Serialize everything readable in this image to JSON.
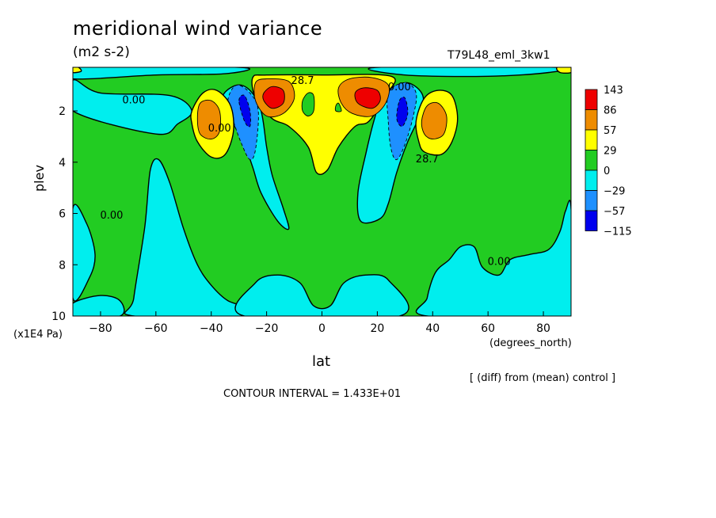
{
  "chart_data": {
    "type": "contour",
    "title": "meridional wind variance",
    "units": "(m2 s-2)",
    "experiment": "T79L48_eml_3kw1",
    "xlabel": "lat",
    "x_units": "(degrees_north)",
    "ylabel": "plev",
    "y_units": "(x1E4 Pa)",
    "xlim": [
      -90,
      90
    ],
    "ylim": [
      10,
      0.3
    ],
    "x_ticks": [
      -80,
      -60,
      -40,
      -20,
      0,
      20,
      40,
      60,
      80
    ],
    "y_ticks": [
      2,
      4,
      6,
      8,
      10
    ],
    "diff_note": "[ (diff) from (mean) control ]",
    "contour_interval": "CONTOUR INTERVAL = 1.433E+01",
    "legend": {
      "labels": [
        "143",
        "86",
        "57",
        "29",
        "0",
        "−29",
        "−57",
        "−115"
      ],
      "colors": [
        "#ee0000",
        "#ee8c00",
        "#ffff00",
        "#22cc22",
        "#00eeee",
        "#1e90ff",
        "#0000ee"
      ]
    },
    "background_color": "#22cc22",
    "regions": [
      {
        "level": "negative",
        "color": "#00eeee",
        "pts": [
          [
            -90,
            0.8
          ],
          [
            -80,
            1.3
          ],
          [
            -55,
            1.4
          ],
          [
            -47,
            2.0
          ],
          [
            -52,
            2.5
          ],
          [
            -60,
            2.9
          ],
          [
            -90,
            2.0
          ]
        ]
      },
      {
        "level": "negative",
        "color": "#00eeee",
        "pts": [
          [
            -90,
            5.8
          ],
          [
            -85,
            6.4
          ],
          [
            -82,
            7.6
          ],
          [
            -84,
            8.5
          ],
          [
            -90,
            9.3
          ]
        ]
      },
      {
        "level": "negative",
        "color": "#00eeee",
        "pts": [
          [
            -90,
            9.5
          ],
          [
            -80,
            9.2
          ],
          [
            -73,
            9.4
          ],
          [
            -73,
            10
          ],
          [
            -90,
            10
          ]
        ]
      },
      {
        "level": "negative",
        "color": "#00eeee",
        "pts": [
          [
            -68,
            9.3
          ],
          [
            -64,
            6.5
          ],
          [
            -62,
            4.3
          ],
          [
            -59,
            3.9
          ],
          [
            -55,
            4.8
          ],
          [
            -50,
            6.6
          ],
          [
            -45,
            8.0
          ],
          [
            -40,
            8.8
          ],
          [
            -34,
            9.4
          ],
          [
            -26,
            9.7
          ],
          [
            -26,
            10
          ],
          [
            -68,
            10
          ]
        ]
      },
      {
        "level": "negative",
        "color": "#00eeee",
        "pts": [
          [
            -36,
            1.5
          ],
          [
            -31,
            1.0
          ],
          [
            -26,
            1.2
          ],
          [
            -22,
            2.0
          ],
          [
            -20,
            3.4
          ],
          [
            -18,
            4.5
          ],
          [
            -14,
            5.8
          ],
          [
            -12,
            6.6
          ],
          [
            -16,
            6.3
          ],
          [
            -22,
            5.2
          ],
          [
            -25,
            4.2
          ],
          [
            -28,
            3.3
          ],
          [
            -32,
            2.5
          ]
        ]
      },
      {
        "level": "negative",
        "color": "#00eeee",
        "pts": [
          [
            22,
            1.4
          ],
          [
            30,
            0.9
          ],
          [
            36,
            1.3
          ],
          [
            36,
            2.0
          ],
          [
            31,
            3.2
          ],
          [
            27,
            4.4
          ],
          [
            24,
            5.6
          ],
          [
            21,
            6.2
          ],
          [
            14,
            6.3
          ],
          [
            13,
            5.2
          ],
          [
            16,
            3.6
          ],
          [
            19,
            2.3
          ]
        ]
      },
      {
        "level": "negative",
        "color": "#00eeee",
        "pts": [
          [
            38,
            9.3
          ],
          [
            41,
            8.3
          ],
          [
            46,
            7.8
          ],
          [
            50,
            7.3
          ],
          [
            55,
            7.3
          ],
          [
            58,
            8.1
          ],
          [
            64,
            8.4
          ],
          [
            68,
            7.8
          ],
          [
            75,
            7.6
          ],
          [
            82,
            7.4
          ],
          [
            86,
            6.7
          ],
          [
            88,
            5.9
          ],
          [
            90,
            5.8
          ],
          [
            90,
            10
          ],
          [
            38,
            10
          ]
        ]
      },
      {
        "level": "negative",
        "color": "#00eeee",
        "pts": [
          [
            -28,
            10
          ],
          [
            -24,
            8.7
          ],
          [
            -16,
            8.4
          ],
          [
            -8,
            8.7
          ],
          [
            -3,
            9.6
          ],
          [
            3,
            9.6
          ],
          [
            8,
            8.7
          ],
          [
            16,
            8.4
          ],
          [
            24,
            8.6
          ],
          [
            28,
            10
          ]
        ]
      },
      {
        "level": "negative",
        "color": "#00eeee",
        "pts": [
          [
            -90,
            0.3
          ],
          [
            -30,
            0.3
          ],
          [
            -35,
            0.55
          ],
          [
            -60,
            0.6
          ],
          [
            -90,
            0.75
          ]
        ]
      },
      {
        "level": "negative",
        "color": "#00eeee",
        "pts": [
          [
            20,
            0.3
          ],
          [
            85,
            0.3
          ],
          [
            82,
            0.5
          ],
          [
            60,
            0.65
          ],
          [
            30,
            0.6
          ]
        ]
      },
      {
        "level": "low",
        "color": "#1e90ff",
        "pts": [
          [
            -34,
            1.6
          ],
          [
            -31,
            1.0
          ],
          [
            -26,
            1.3
          ],
          [
            -23,
            2.0
          ],
          [
            -24,
            3.5
          ],
          [
            -26,
            3.9
          ],
          [
            -29,
            3.3
          ],
          [
            -32,
            2.4
          ]
        ]
      },
      {
        "level": "low",
        "color": "#1e90ff",
        "pts": [
          [
            24,
            1.3
          ],
          [
            30,
            0.9
          ],
          [
            34,
            1.3
          ],
          [
            33,
            2.2
          ],
          [
            30,
            3.3
          ],
          [
            27,
            3.9
          ],
          [
            25,
            3.5
          ],
          [
            24,
            2.5
          ]
        ]
      },
      {
        "level": "min",
        "color": "#0000ee",
        "pts": [
          [
            -30,
            1.6
          ],
          [
            -28,
            1.4
          ],
          [
            -26,
            2.0
          ],
          [
            -26,
            2.6
          ],
          [
            -28,
            2.4
          ]
        ]
      },
      {
        "level": "min",
        "color": "#0000ee",
        "pts": [
          [
            28,
            1.6
          ],
          [
            30,
            1.5
          ],
          [
            31,
            2.1
          ],
          [
            29,
            2.6
          ],
          [
            27,
            2.3
          ]
        ]
      },
      {
        "level": "positive",
        "color": "#ffff00",
        "pts": [
          [
            -25,
            0.7
          ],
          [
            -20,
            0.6
          ],
          [
            0,
            0.6
          ],
          [
            25,
            0.65
          ],
          [
            23,
            1.4
          ],
          [
            17,
            2.4
          ],
          [
            12,
            2.6
          ],
          [
            6,
            3.4
          ],
          [
            2,
            4.3
          ],
          [
            -2,
            4.4
          ],
          [
            -5,
            3.4
          ],
          [
            -12,
            2.6
          ],
          [
            -18,
            2.3
          ],
          [
            -24,
            1.5
          ]
        ]
      },
      {
        "level": "positive",
        "color": "#ffff00",
        "pts": [
          [
            -47,
            2.0
          ],
          [
            -43,
            1.3
          ],
          [
            -38,
            1.2
          ],
          [
            -33,
            1.8
          ],
          [
            -32,
            2.8
          ],
          [
            -35,
            3.7
          ],
          [
            -40,
            3.8
          ],
          [
            -45,
            3.2
          ],
          [
            -47,
            2.5
          ]
        ]
      },
      {
        "level": "positive",
        "color": "#ffff00",
        "pts": [
          [
            34,
            2.4
          ],
          [
            37,
            1.5
          ],
          [
            42,
            1.2
          ],
          [
            47,
            1.4
          ],
          [
            49,
            2.3
          ],
          [
            47,
            3.2
          ],
          [
            43,
            3.7
          ],
          [
            37,
            3.6
          ],
          [
            35,
            3.2
          ]
        ]
      },
      {
        "level": "positive",
        "color": "#ffff00",
        "pts": [
          [
            -90,
            0.3
          ],
          [
            -88,
            0.3
          ],
          [
            -87,
            0.45
          ],
          [
            -90,
            0.5
          ]
        ]
      },
      {
        "level": "positive",
        "color": "#ffff00",
        "pts": [
          [
            85,
            0.3
          ],
          [
            90,
            0.3
          ],
          [
            90,
            0.5
          ],
          [
            86,
            0.5
          ]
        ]
      },
      {
        "level": "high",
        "color": "#ee8c00",
        "pts": [
          [
            -24,
            0.9
          ],
          [
            -20,
            0.75
          ],
          [
            -12,
            0.85
          ],
          [
            -10,
            1.5
          ],
          [
            -14,
            2.1
          ],
          [
            -20,
            2.2
          ],
          [
            -24,
            1.6
          ]
        ]
      },
      {
        "level": "high",
        "color": "#ee8c00",
        "pts": [
          [
            6,
            1.1
          ],
          [
            10,
            0.75
          ],
          [
            18,
            0.7
          ],
          [
            24,
            1.0
          ],
          [
            23,
            1.7
          ],
          [
            18,
            2.2
          ],
          [
            11,
            2.1
          ],
          [
            7,
            1.7
          ]
        ]
      },
      {
        "level": "high",
        "color": "#ee8c00",
        "pts": [
          [
            -45,
            2.3
          ],
          [
            -44,
            1.7
          ],
          [
            -40,
            1.6
          ],
          [
            -37,
            2.0
          ],
          [
            -37,
            2.8
          ],
          [
            -40,
            3.1
          ],
          [
            -44,
            2.9
          ]
        ]
      },
      {
        "level": "high",
        "color": "#ee8c00",
        "pts": [
          [
            36,
            2.4
          ],
          [
            38,
            1.8
          ],
          [
            42,
            1.7
          ],
          [
            45,
            2.2
          ],
          [
            44,
            2.9
          ],
          [
            40,
            3.1
          ],
          [
            37,
            2.9
          ]
        ]
      },
      {
        "level": "max",
        "color": "#ee0000",
        "pts": [
          [
            -21,
            1.3
          ],
          [
            -18,
            1.05
          ],
          [
            -14,
            1.2
          ],
          [
            -14,
            1.7
          ],
          [
            -18,
            1.9
          ],
          [
            -21,
            1.6
          ]
        ]
      },
      {
        "level": "max",
        "color": "#ee0000",
        "pts": [
          [
            12,
            1.3
          ],
          [
            15,
            1.1
          ],
          [
            20,
            1.2
          ],
          [
            21,
            1.6
          ],
          [
            18,
            1.9
          ],
          [
            13,
            1.7
          ]
        ]
      },
      {
        "level": "zero_pocket",
        "color": "#22cc22",
        "pts": [
          [
            -7,
            1.6
          ],
          [
            -5,
            1.3
          ],
          [
            -3,
            1.4
          ],
          [
            -3,
            2.0
          ],
          [
            -5,
            2.2
          ],
          [
            -7,
            2.0
          ]
        ]
      },
      {
        "level": "zero_pocket",
        "color": "#22cc22",
        "pts": [
          [
            5,
            1.8
          ],
          [
            6,
            1.7
          ],
          [
            7,
            2.0
          ],
          [
            5,
            2.0
          ]
        ]
      }
    ],
    "contour_labels": [
      {
        "text": "28.7",
        "x": -7,
        "y": 0.95
      },
      {
        "text": "0.00",
        "x": -68,
        "y": 1.7
      },
      {
        "text": "0.00",
        "x": 28,
        "y": 1.2
      },
      {
        "text": "28.7",
        "x": 38,
        "y": 4.0
      },
      {
        "text": "0.00",
        "x": -37,
        "y": 2.8
      },
      {
        "text": "0.00",
        "x": -76,
        "y": 6.2
      },
      {
        "text": "0.00",
        "x": 64,
        "y": 8.0
      }
    ]
  }
}
